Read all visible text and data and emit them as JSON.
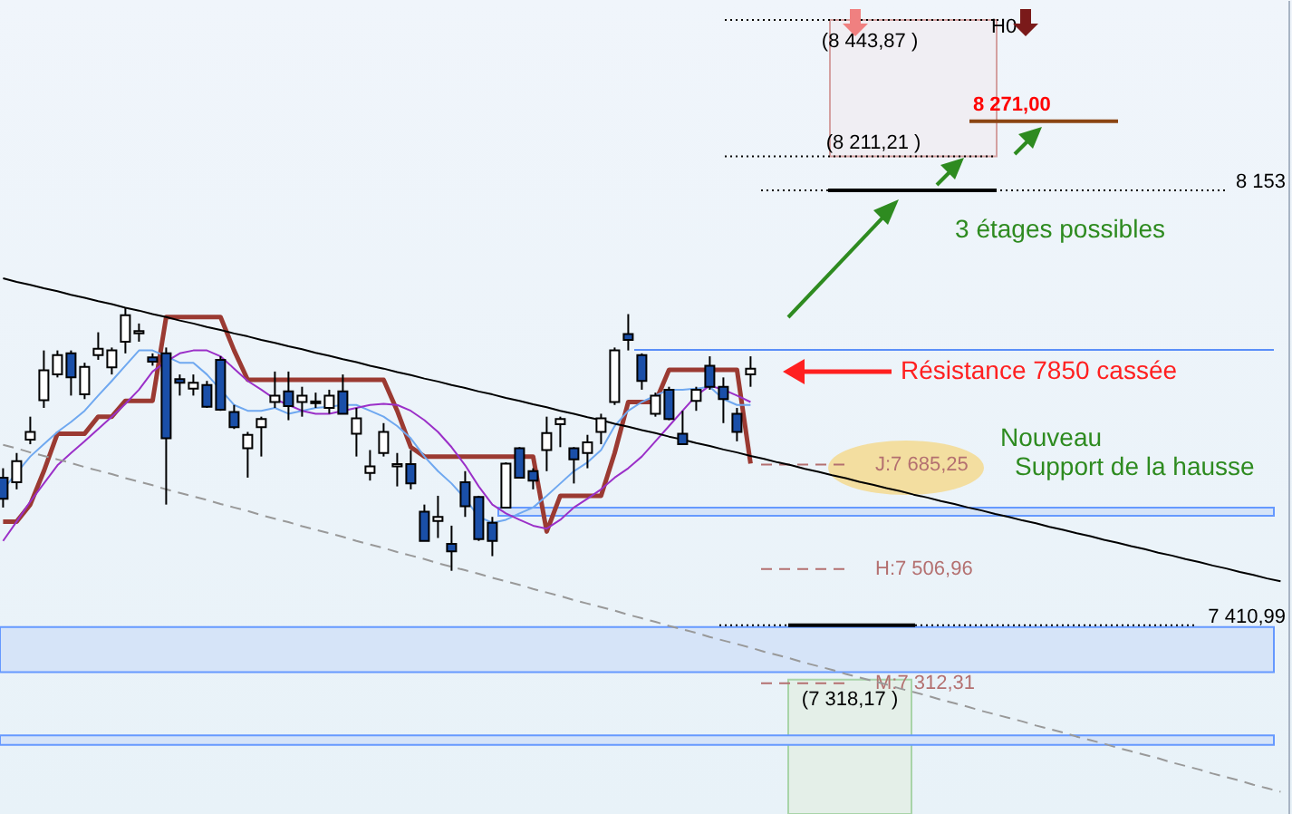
{
  "chart_data": {
    "type": "candlestick",
    "ylim": [
      7089,
      8478
    ],
    "yticks": [
      {
        "value": 8153,
        "label": "8 153"
      },
      {
        "value": 7410.99,
        "label": "7 410,99"
      }
    ],
    "categories": [
      null,
      null,
      null,
      null,
      null,
      null,
      null,
      null,
      null,
      null,
      null,
      null,
      null,
      null,
      null,
      null,
      null,
      null,
      null,
      null,
      null,
      null,
      null,
      null,
      null,
      null,
      null,
      null,
      null,
      null,
      null,
      null,
      null,
      null,
      null,
      null,
      null,
      null,
      null,
      null,
      null,
      null,
      null,
      null,
      null,
      null,
      null,
      null,
      null,
      null,
      null,
      null,
      null,
      null,
      null,
      null,
      null,
      null,
      null,
      null,
      null,
      null,
      null,
      null,
      null,
      null,
      null,
      null,
      null,
      null,
      null,
      null,
      null,
      null,
      null,
      null,
      null,
      null,
      null,
      null,
      null,
      null,
      null,
      null,
      null,
      null,
      null,
      null,
      null,
      null,
      null,
      null,
      null,
      null,
      null
    ],
    "ohlc": [
      [
        7663,
        7679,
        7612,
        7627
      ],
      [
        7655,
        7705,
        7643,
        7691
      ],
      [
        7728,
        7767,
        7720,
        7741
      ],
      [
        7795,
        7880,
        7782,
        7846
      ],
      [
        7839,
        7880,
        7834,
        7872
      ],
      [
        7875,
        7880,
        7803,
        7834
      ],
      [
        7805,
        7859,
        7797,
        7852
      ],
      [
        7872,
        7911,
        7864,
        7883
      ],
      [
        7851,
        7885,
        7839,
        7880
      ],
      [
        7895,
        7952,
        7875,
        7940
      ],
      [
        7909,
        7926,
        7895,
        7913
      ],
      [
        7868,
        7875,
        7854,
        7861
      ],
      [
        7875,
        7885,
        7617,
        7730
      ],
      [
        7831,
        7839,
        7803,
        7825
      ],
      [
        7815,
        7839,
        7803,
        7825
      ],
      [
        7821,
        7828,
        7782,
        7784
      ],
      [
        7864,
        7870,
        7777,
        7779
      ],
      [
        7775,
        7787,
        7746,
        7749
      ],
      [
        7713,
        7741,
        7663,
        7736
      ],
      [
        7749,
        7767,
        7699,
        7763
      ],
      [
        7792,
        7844,
        7782,
        7803
      ],
      [
        7810,
        7844,
        7761,
        7785
      ],
      [
        7792,
        7818,
        7767,
        7803
      ],
      [
        7790,
        7808,
        7782,
        7793
      ],
      [
        7782,
        7813,
        7772,
        7803
      ],
      [
        7810,
        7839,
        7772,
        7772
      ],
      [
        7738,
        7782,
        7699,
        7764
      ],
      [
        7671,
        7710,
        7658,
        7682
      ],
      [
        7705,
        7756,
        7699,
        7741
      ],
      [
        7682,
        7705,
        7648,
        7686
      ],
      [
        7686,
        7710,
        7643,
        7653
      ],
      [
        7605,
        7617,
        7555,
        7555
      ],
      [
        7589,
        7632,
        7560,
        7596
      ],
      [
        7550,
        7581,
        7504,
        7537
      ],
      [
        7655,
        7674,
        7596,
        7614
      ],
      [
        7630,
        7632,
        7555,
        7558
      ],
      [
        7586,
        7596,
        7529,
        7555
      ],
      [
        7612,
        7689,
        7612,
        7687
      ],
      [
        7713,
        7715,
        7663,
        7663
      ],
      [
        7674,
        7679,
        7643,
        7658
      ],
      [
        7710,
        7767,
        7674,
        7739
      ],
      [
        7754,
        7767,
        7715,
        7763
      ],
      [
        7713,
        7715,
        7653,
        7694
      ],
      [
        7705,
        7736,
        7679,
        7723
      ],
      [
        7741,
        7772,
        7720,
        7764
      ],
      [
        7792,
        7885,
        7787,
        7880
      ],
      [
        7908,
        7942,
        7880,
        7898
      ],
      [
        7872,
        7875,
        7813,
        7828
      ],
      [
        7772,
        7808,
        7767,
        7803
      ],
      [
        7813,
        7818,
        7761,
        7763
      ],
      [
        7738,
        7777,
        7720,
        7720
      ],
      [
        7794,
        7818,
        7777,
        7813
      ],
      [
        7854,
        7870,
        7813,
        7818
      ],
      [
        7818,
        7834,
        7756,
        7797
      ],
      [
        7772,
        7782,
        7725,
        7741
      ],
      [
        7839,
        7870,
        7818,
        7849
      ],
      null,
      null,
      null,
      null,
      null,
      null,
      null,
      null,
      null,
      null,
      null,
      null,
      null,
      null,
      null,
      null,
      null,
      null,
      null,
      null,
      null,
      null,
      null,
      null,
      null,
      null,
      null,
      null,
      null,
      null,
      null,
      null,
      null,
      null,
      null,
      null,
      null,
      null,
      null
    ],
    "colors": [
      "#1a4fa8",
      "#ffffff",
      "#ffffff",
      "#ffffff",
      "#ffffff",
      "#1a4fa8",
      "#ffffff",
      "#ffffff",
      "#ffffff",
      "#ffffff",
      "#ffffff",
      "#1a4fa8",
      "#1a4fa8",
      "#1a4fa8",
      "#ffffff",
      "#1a4fa8",
      "#1a4fa8",
      "#1a4fa8",
      "#ffffff",
      "#ffffff",
      "#ffffff",
      "#1a4fa8",
      "#ffffff",
      "#ffffff",
      "#ffffff",
      "#1a4fa8",
      "#ffffff",
      "#ffffff",
      "#ffffff",
      "#ffffff",
      "#1a4fa8",
      "#1a4fa8",
      "#ffffff",
      "#1a4fa8",
      "#1a4fa8",
      "#1a4fa8",
      "#1a4fa8",
      "#ffffff",
      "#1a4fa8",
      "#1a4fa8",
      "#ffffff",
      "#ffffff",
      "#1a4fa8",
      "#ffffff",
      "#ffffff",
      "#ffffff",
      "#1a4fa8",
      "#1a4fa8",
      "#ffffff",
      "#1a4fa8",
      "#1a4fa8",
      "#ffffff",
      "#1a4fa8",
      "#1a4fa8",
      "#1a4fa8",
      "#ffffff",
      null,
      null,
      null,
      null,
      null,
      null,
      null,
      null,
      null,
      null,
      null,
      null,
      null,
      null,
      null,
      null,
      null,
      null,
      null,
      null,
      null,
      null,
      null,
      null,
      null,
      null,
      null,
      null,
      null,
      null,
      null,
      null,
      null,
      null,
      null,
      null,
      null,
      null,
      null
    ],
    "series": [
      {
        "type": "line",
        "color": "#9b3a32",
        "values": [
          7588,
          7588,
          7617,
          7674,
          7738,
          7738,
          7738,
          7767,
          7767,
          7794,
          7794,
          7794,
          7937,
          7937,
          7937,
          7937,
          7937,
          7880,
          7830,
          7830,
          7830,
          7830,
          7830,
          7830,
          7830,
          7830,
          7830,
          7830,
          7830,
          7777,
          7715,
          7699,
          7699,
          7699,
          7699,
          7699,
          7699,
          7699,
          7699,
          7699,
          7571,
          7632,
          7632,
          7632,
          7632,
          7705,
          7792,
          7792,
          7792,
          7847,
          7847,
          7847,
          7847,
          7847,
          7847,
          7687,
          null,
          null,
          null,
          null,
          null,
          null,
          null,
          null,
          null,
          null,
          null,
          null,
          null,
          null,
          null,
          null,
          null,
          null,
          null,
          null,
          null,
          null,
          null,
          null,
          null,
          null,
          null,
          null,
          null,
          null,
          null,
          null,
          null,
          null,
          null,
          null,
          null,
          null,
          null
        ]
      },
      {
        "type": "line",
        "color": "#6fa8f0",
        "values": [
          7643,
          7671,
          7699,
          7720,
          7741,
          7758,
          7777,
          7803,
          7828,
          7854,
          7880,
          7880,
          7870,
          7859,
          7859,
          7839,
          7813,
          7787,
          7777,
          7777,
          7782,
          7772,
          7777,
          7782,
          7784,
          7787,
          7787,
          7777,
          7767,
          7751,
          7730,
          7699,
          7674,
          7653,
          7627,
          7596,
          7586,
          7591,
          7602,
          7612,
          7632,
          7653,
          7674,
          7689,
          7710,
          7751,
          7777,
          7792,
          7803,
          7813,
          7813,
          7815,
          7818,
          7797,
          7787,
          7787,
          null,
          null,
          null,
          null,
          null,
          null,
          null,
          null,
          null,
          null,
          null,
          null,
          null,
          null,
          null,
          null,
          null,
          null,
          null,
          null,
          null,
          null,
          null,
          null,
          null,
          null,
          null,
          null,
          null,
          null,
          null,
          null,
          null,
          null,
          null,
          null,
          null,
          null,
          null
        ]
      },
      {
        "type": "line",
        "color": "#9b30c8",
        "values": [
          7555,
          7588,
          7622,
          7653,
          7684,
          7705,
          7725,
          7746,
          7767,
          7789,
          7813,
          7844,
          7861,
          7875,
          7880,
          7880,
          7870,
          7849,
          7828,
          7813,
          7797,
          7787,
          7777,
          7772,
          7772,
          7777,
          7782,
          7787,
          7789,
          7787,
          7777,
          7761,
          7741,
          7715,
          7684,
          7648,
          7617,
          7602,
          7591,
          7581,
          7576,
          7591,
          7612,
          7627,
          7643,
          7663,
          7679,
          7699,
          7725,
          7751,
          7777,
          7803,
          7820,
          7813,
          7803,
          7792,
          null,
          null,
          null,
          null,
          null,
          null,
          null,
          null,
          null,
          null,
          null,
          null,
          null,
          null,
          null,
          null,
          null,
          null,
          null,
          null,
          null,
          null,
          null,
          null,
          null,
          null,
          null,
          null,
          null,
          null,
          null,
          null,
          null,
          null,
          null,
          null,
          null,
          null,
          null
        ]
      },
      {
        "type": "line",
        "color": "#000000",
        "values": [
          8003,
          7997,
          7992,
          7986,
          7981,
          7975,
          7970,
          7964,
          7959,
          7953,
          7948,
          7942,
          7937,
          7931,
          7926,
          7920,
          7915,
          7909,
          7904,
          7898,
          7893,
          7887,
          7882,
          7876,
          7871,
          7865,
          7860,
          7854,
          7849,
          7843,
          7838,
          7832,
          7827,
          7821,
          7816,
          7810,
          7805,
          7799,
          7794,
          7788,
          7783,
          7777,
          7772,
          7766,
          7761,
          7755,
          7750,
          7744,
          7739,
          7733,
          7728,
          7722,
          7717,
          7711,
          7706,
          7700,
          7695,
          7689,
          7684,
          7678,
          7673,
          7667,
          7662,
          7656,
          7651,
          7645,
          7640,
          7634,
          7629,
          7623,
          7618,
          7612,
          7607,
          7601,
          7596,
          7590,
          7585,
          7579,
          7574,
          7568,
          7563,
          7557,
          7552,
          7546,
          7541,
          7535,
          7530,
          7524,
          7519,
          7513,
          7508,
          7502,
          7497,
          7491,
          7486
        ]
      },
      {
        "type": "line",
        "color": "#999999",
        "line_style": "dashed",
        "values": [
          7719,
          7713,
          7706,
          7700,
          7694,
          7688,
          7681,
          7675,
          7669,
          7662,
          7656,
          7650,
          7643,
          7637,
          7631,
          7625,
          7618,
          7612,
          7606,
          7599,
          7593,
          7587,
          7580,
          7574,
          7568,
          7562,
          7555,
          7549,
          7543,
          7536,
          7530,
          7524,
          7517,
          7511,
          7505,
          7499,
          7492,
          7486,
          7480,
          7473,
          7467,
          7461,
          7454,
          7448,
          7442,
          7436,
          7429,
          7423,
          7417,
          7410,
          7404,
          7398,
          7391,
          7385,
          7379,
          7373,
          7366,
          7360,
          7354,
          7347,
          7341,
          7335,
          7328,
          7322,
          7316,
          7310,
          7303,
          7297,
          7291,
          7284,
          7278,
          7272,
          7265,
          7259,
          7253,
          7247,
          7240,
          7234,
          7228,
          7221,
          7215,
          7209,
          7202,
          7196,
          7190,
          7184,
          7177,
          7171,
          7165,
          7158,
          7152,
          7146,
          7139,
          7133,
          7127
        ]
      }
    ],
    "ref_lines": [
      {
        "axis": "y",
        "value": 8443.87,
        "label": "(8 443,87 )",
        "color": "#000000",
        "line_style": "dotted"
      },
      {
        "axis": "y",
        "value": 8211.21,
        "label": "(8 211,21 )",
        "color": "#000000",
        "line_style": "dotted"
      },
      {
        "axis": "y",
        "value": 8271,
        "label": "8 271,00",
        "color": "#8b4513",
        "line_style": "solid"
      },
      {
        "axis": "y",
        "value": 8153,
        "color": "#000000",
        "line_style": "dotted"
      },
      {
        "axis": "y",
        "value": 8153,
        "color": "#000000",
        "line_style": "solid"
      },
      {
        "axis": "y",
        "value": 7410.99,
        "color": "#000000",
        "line_style": "dotted"
      },
      {
        "axis": "y",
        "value": 7410.99,
        "color": "#000000",
        "line_style": "solid"
      },
      {
        "axis": "y",
        "value": 7685.25,
        "label": "J:7 685,25",
        "color": "#b47070",
        "line_style": "dashed"
      },
      {
        "axis": "y",
        "value": 7506.96,
        "label": "H:7 506,96",
        "color": "#b47070",
        "line_style": "dashed"
      },
      {
        "axis": "y",
        "value": 7312.31,
        "label": "M:7 312,31",
        "color": "#b47070",
        "line_style": "dashed"
      },
      {
        "axis": "y",
        "value": 7881,
        "color": "#5b8ff9",
        "line_style": "solid"
      }
    ],
    "bands": [
      {
        "axis": "y",
        "from": 8211.21,
        "to": 8443.87,
        "color": "#f0eef3"
      },
      {
        "axis": "y",
        "from": 7089,
        "to": 7318.17,
        "label": "(7 318,17 )",
        "color": "#e4efe8"
      },
      {
        "axis": "y",
        "from": 7598,
        "to": 7612,
        "color": "#d6e4f8"
      },
      {
        "axis": "y",
        "from": 7331,
        "to": 7408,
        "color": "#d6e4f8"
      },
      {
        "axis": "y",
        "from": 7207,
        "to": 7223,
        "color": "#d6e4f8"
      }
    ],
    "annotations": [
      "3 étages possibles",
      "Résistance 7850 cassée",
      "Nouveau",
      "Support de la hausse",
      "H0"
    ]
  }
}
